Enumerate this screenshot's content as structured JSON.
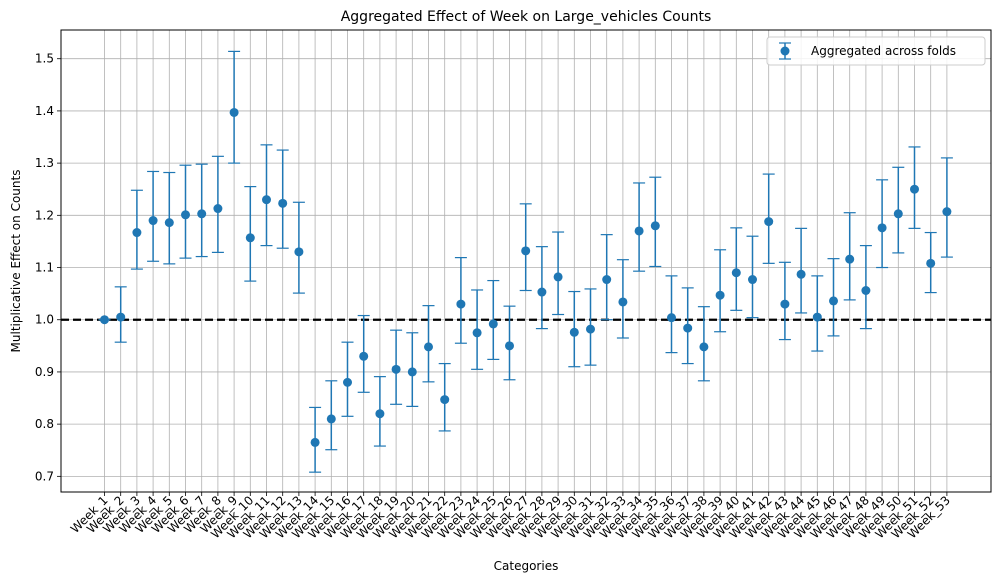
{
  "chart_data": {
    "type": "scatter",
    "title": "Aggregated Effect of Week on Large_vehicles Counts",
    "xlabel": "Categories",
    "ylabel": "Multiplicative Effect on Counts",
    "ylim": [
      0.67,
      1.555
    ],
    "yticks": [
      0.7,
      0.8,
      0.9,
      1.0,
      1.1,
      1.2,
      1.3,
      1.4,
      1.5
    ],
    "ytick_labels": [
      "0.7",
      "0.8",
      "0.9",
      "1.0",
      "1.1",
      "1.2",
      "1.3",
      "1.4",
      "1.5"
    ],
    "grid": true,
    "reference_line": 1.0,
    "legend": {
      "entries": [
        "Aggregated across folds"
      ],
      "placement": "top-right"
    },
    "series_color": "#1f77b4",
    "categories": [
      "Week_1",
      "Week_2",
      "Week_3",
      "Week_4",
      "Week_5",
      "Week_6",
      "Week_7",
      "Week_8",
      "Week_9",
      "Week_10",
      "Week_11",
      "Week_12",
      "Week_13",
      "Week_14",
      "Week_15",
      "Week_16",
      "Week_17",
      "Week_18",
      "Week_19",
      "Week_20",
      "Week_21",
      "Week_22",
      "Week_23",
      "Week_24",
      "Week_25",
      "Week_26",
      "Week_27",
      "Week_28",
      "Week_29",
      "Week_30",
      "Week_31",
      "Week_32",
      "Week_33",
      "Week_34",
      "Week_35",
      "Week_36",
      "Week_37",
      "Week_38",
      "Week_39",
      "Week_40",
      "Week_41",
      "Week_42",
      "Week_43",
      "Week_44",
      "Week_45",
      "Week_46",
      "Week_47",
      "Week_48",
      "Week_49",
      "Week_50",
      "Week_51",
      "Week_52",
      "Week_53"
    ],
    "series": [
      {
        "name": "Aggregated across folds",
        "values": [
          1.0,
          1.005,
          1.167,
          1.19,
          1.186,
          1.201,
          1.203,
          1.213,
          1.397,
          1.157,
          1.23,
          1.223,
          1.13,
          0.765,
          0.81,
          0.88,
          0.93,
          0.82,
          0.905,
          0.9,
          0.948,
          0.847,
          1.03,
          0.975,
          0.992,
          0.95,
          1.132,
          1.053,
          1.082,
          0.976,
          0.982,
          1.077,
          1.034,
          1.17,
          1.18,
          1.004,
          0.984,
          0.948,
          1.047,
          1.09,
          1.077,
          1.188,
          1.03,
          1.087,
          1.005,
          1.036,
          1.116,
          1.056,
          1.176,
          1.203,
          1.25,
          1.108,
          1.207
        ],
        "lower": [
          1.0,
          0.957,
          1.097,
          1.112,
          1.107,
          1.118,
          1.121,
          1.129,
          1.3,
          1.074,
          1.142,
          1.137,
          1.051,
          0.708,
          0.751,
          0.815,
          0.861,
          0.758,
          0.838,
          0.834,
          0.881,
          0.787,
          0.955,
          0.905,
          0.924,
          0.885,
          1.056,
          0.983,
          1.01,
          0.91,
          0.913,
          1.0,
          0.965,
          1.093,
          1.102,
          0.937,
          0.916,
          0.883,
          0.977,
          1.018,
          1.004,
          1.108,
          0.962,
          1.013,
          0.94,
          0.969,
          1.038,
          0.983,
          1.1,
          1.128,
          1.175,
          1.052,
          1.12
        ],
        "upper": [
          1.0,
          1.063,
          1.248,
          1.284,
          1.282,
          1.296,
          1.298,
          1.313,
          1.514,
          1.255,
          1.335,
          1.325,
          1.225,
          0.832,
          0.883,
          0.957,
          1.008,
          0.891,
          0.98,
          0.975,
          1.027,
          0.916,
          1.119,
          1.057,
          1.075,
          1.026,
          1.222,
          1.14,
          1.168,
          1.054,
          1.059,
          1.163,
          1.115,
          1.262,
          1.273,
          1.084,
          1.061,
          1.025,
          1.134,
          1.176,
          1.16,
          1.279,
          1.11,
          1.175,
          1.084,
          1.117,
          1.205,
          1.142,
          1.268,
          1.292,
          1.331,
          1.167,
          1.31
        ]
      }
    ]
  }
}
